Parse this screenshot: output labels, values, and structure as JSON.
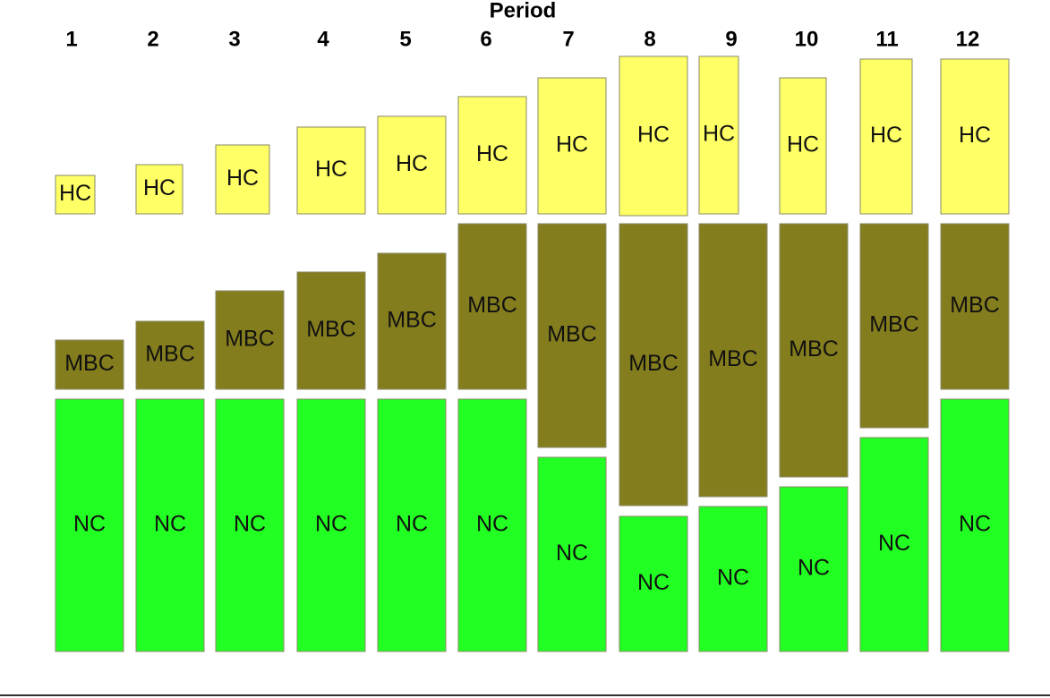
{
  "title": "Period",
  "columns": [
    {
      "period": "1",
      "top": "HC",
      "middle": "MBC",
      "bottom": "NC"
    },
    {
      "period": "2",
      "top": "HC",
      "middle": "MBC",
      "bottom": "NC"
    },
    {
      "period": "3",
      "top": "HC",
      "middle": "MBC",
      "bottom": "NC"
    },
    {
      "period": "4",
      "top": "HC",
      "middle": "MBC",
      "bottom": "NC"
    },
    {
      "period": "5",
      "top": "HC",
      "middle": "MBC",
      "bottom": "NC"
    },
    {
      "period": "6",
      "top": "HC",
      "middle": "MBC",
      "bottom": "NC"
    },
    {
      "period": "7",
      "top": "HC",
      "middle": "MBC",
      "bottom": "NC"
    },
    {
      "period": "8",
      "top": "HC",
      "middle": "MBC",
      "bottom": "NC"
    },
    {
      "period": "9",
      "top": "HC",
      "middle": "MBC",
      "bottom": "NC"
    },
    {
      "period": "10",
      "top": "HC",
      "middle": "MBC",
      "bottom": "NC"
    },
    {
      "period": "11",
      "top": "HC",
      "middle": "MBC",
      "bottom": "NC"
    },
    {
      "period": "12",
      "top": "HC",
      "middle": "MBC",
      "bottom": "NC"
    }
  ]
}
